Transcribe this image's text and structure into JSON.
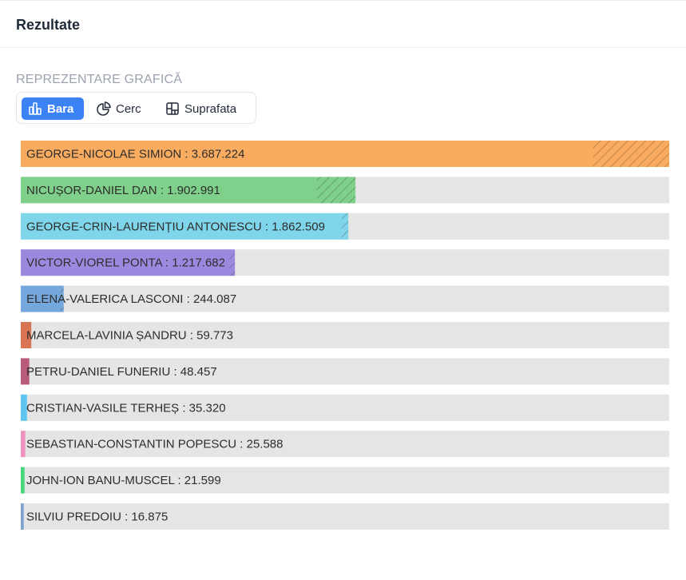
{
  "header": {
    "title": "Rezultate"
  },
  "section": {
    "label": "REPREZENTARE GRAFICĂ"
  },
  "view_toggle": {
    "options": [
      {
        "label": "Bara",
        "icon": "bar-chart-icon",
        "active": true
      },
      {
        "label": "Cerc",
        "icon": "pie-chart-icon",
        "active": false
      },
      {
        "label": "Suprafata",
        "icon": "treemap-icon",
        "active": false
      }
    ]
  },
  "colors": {
    "track": "#e5e5e5",
    "accent": "#3b82f6"
  },
  "chart_data": {
    "type": "bar",
    "orientation": "horizontal",
    "categories": [
      "GEORGE-NICOLAE SIMION",
      "NICUȘOR-DANIEL DAN",
      "GEORGE-CRIN-LAURENȚIU ANTONESCU",
      "VICTOR-VIOREL PONTA",
      "ELENA-VALERICA LASCONI",
      "MARCELA-LAVINIA ȘANDRU",
      "PETRU-DANIEL FUNERIU",
      "CRISTIAN-VASILE TERHEȘ",
      "SEBASTIAN-CONSTANTIN POPESCU",
      "JOHN-ION BANU-MUSCEL",
      "SILVIU PREDOIU"
    ],
    "values": [
      3687224,
      1902991,
      1862509,
      1217682,
      244087,
      59773,
      48457,
      35320,
      25588,
      21599,
      16875
    ],
    "value_labels": [
      "3.687.224",
      "1.902.991",
      "1.862.509",
      "1.217.682",
      "244.087",
      "59.773",
      "48.457",
      "35.320",
      "25.588",
      "21.599",
      "16.875"
    ],
    "hatch_values": [
      432000,
      220000,
      38000,
      30000,
      20000,
      0,
      0,
      0,
      0,
      0,
      0
    ],
    "colors": [
      "#f9ac5f",
      "#7fd08a",
      "#7fd6ea",
      "#9d88e0",
      "#74a7dc",
      "#d97553",
      "#b85b79",
      "#5ec6f0",
      "#ee93bd",
      "#48d67c",
      "#7fa2cf"
    ],
    "xlim": [
      0,
      3687224
    ],
    "grid": false,
    "legend": "none"
  }
}
